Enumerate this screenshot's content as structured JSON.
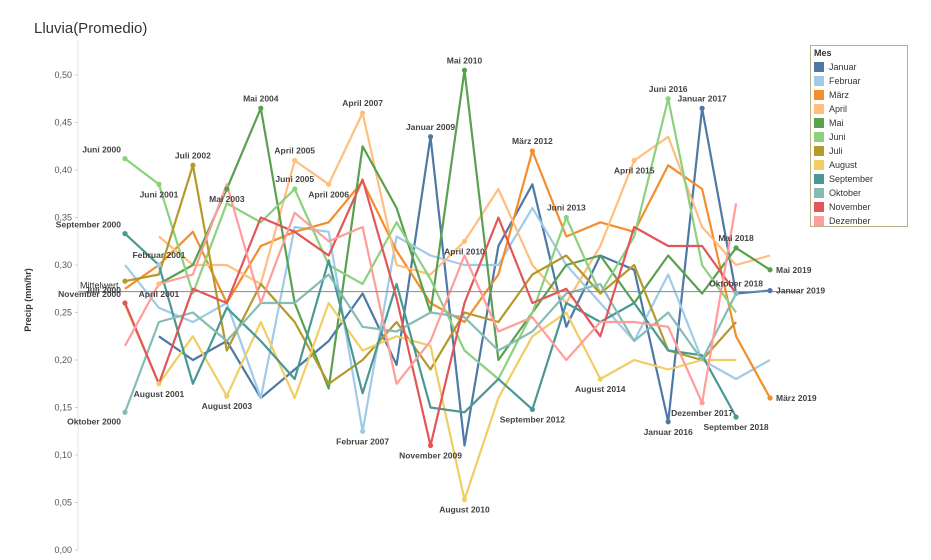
{
  "chart_data": {
    "type": "line",
    "title": "Lluvia(Promedio)",
    "ylabel": "Precip (mm/hr)",
    "ylim": [
      0,
      0.52
    ],
    "yticks": [
      "0,00",
      "0,05",
      "0,10",
      "0,15",
      "0,20",
      "0,25",
      "0,30",
      "0,35",
      "0,40",
      "0,45",
      "0,50"
    ],
    "ytick_values": [
      0,
      0.05,
      0.1,
      0.15,
      0.2,
      0.25,
      0.3,
      0.35,
      0.4,
      0.45,
      0.5
    ],
    "x": [
      2000,
      2001,
      2002,
      2003,
      2004,
      2005,
      2006,
      2007,
      2008,
      2009,
      2010,
      2011,
      2012,
      2013,
      2014,
      2015,
      2016,
      2017,
      2018,
      2019
    ],
    "reference_line": {
      "label": "Mittelwert",
      "value": 0.272
    },
    "legend_title": "Mes",
    "legend_placement": "right",
    "series": [
      {
        "name": "Januar",
        "color": "#4e79a7",
        "values": [
          null,
          0.225,
          0.2,
          0.22,
          0.16,
          0.19,
          0.22,
          0.27,
          0.195,
          0.435,
          0.11,
          0.32,
          0.385,
          0.235,
          0.31,
          0.295,
          0.135,
          0.465,
          0.27,
          0.273
        ]
      },
      {
        "name": "Februar",
        "color": "#a0cbe8",
        "values": [
          0.3,
          0.255,
          0.24,
          0.26,
          0.16,
          0.34,
          0.335,
          0.125,
          0.33,
          0.31,
          0.3,
          0.3,
          0.36,
          0.3,
          0.26,
          0.22,
          0.29,
          0.2,
          0.18,
          0.2
        ]
      },
      {
        "name": "März",
        "color": "#f28e2b",
        "values": [
          0.275,
          0.3,
          0.335,
          0.26,
          0.32,
          0.335,
          0.345,
          0.388,
          0.315,
          0.26,
          0.24,
          0.29,
          0.42,
          0.33,
          0.345,
          0.335,
          0.405,
          0.38,
          0.225,
          0.16
        ]
      },
      {
        "name": "April",
        "color": "#ffbe7d",
        "values": [
          null,
          0.33,
          0.3,
          0.3,
          0.28,
          0.41,
          0.385,
          0.46,
          0.3,
          0.29,
          0.325,
          0.38,
          0.3,
          0.26,
          0.32,
          0.41,
          0.435,
          0.34,
          0.3,
          0.31
        ]
      },
      {
        "name": "Mai",
        "color": "#59a14f",
        "values": [
          null,
          0.28,
          0.3,
          0.38,
          0.465,
          0.26,
          0.17,
          0.425,
          0.36,
          0.25,
          0.505,
          0.2,
          0.25,
          0.3,
          0.31,
          0.26,
          0.31,
          0.27,
          0.318,
          0.295
        ]
      },
      {
        "name": "Juni",
        "color": "#8cd17d",
        "values": [
          0.412,
          0.385,
          0.27,
          0.365,
          0.345,
          0.38,
          0.3,
          0.28,
          0.345,
          0.285,
          0.21,
          0.18,
          0.25,
          0.35,
          0.27,
          0.33,
          0.475,
          0.3,
          0.25,
          null
        ]
      },
      {
        "name": "Juli",
        "color": "#b6992d",
        "values": [
          0.283,
          0.29,
          0.405,
          0.21,
          0.28,
          0.24,
          0.175,
          0.2,
          0.24,
          0.19,
          0.25,
          0.24,
          0.29,
          0.31,
          0.27,
          0.3,
          0.21,
          0.2,
          0.24,
          null
        ]
      },
      {
        "name": "August",
        "color": "#f1ce63",
        "values": [
          0.258,
          0.175,
          0.225,
          0.162,
          0.24,
          0.16,
          0.26,
          0.21,
          0.225,
          0.215,
          0.053,
          0.16,
          0.225,
          0.25,
          0.18,
          0.2,
          0.19,
          0.2,
          0.2,
          null
        ]
      },
      {
        "name": "September",
        "color": "#499894",
        "values": [
          0.333,
          0.3,
          0.175,
          0.255,
          0.22,
          0.18,
          0.305,
          0.165,
          0.28,
          0.15,
          0.145,
          0.18,
          0.148,
          0.26,
          0.24,
          0.26,
          0.21,
          0.205,
          0.14,
          null
        ]
      },
      {
        "name": "Oktober",
        "color": "#86bcb6",
        "values": [
          0.145,
          0.24,
          0.25,
          0.22,
          0.26,
          0.26,
          0.29,
          0.235,
          0.23,
          0.25,
          0.245,
          0.21,
          0.23,
          0.27,
          0.28,
          0.22,
          0.25,
          0.2,
          0.27,
          null
        ]
      },
      {
        "name": "November",
        "color": "#e15759",
        "values": [
          0.26,
          0.175,
          0.275,
          0.26,
          0.35,
          0.335,
          0.31,
          0.39,
          0.265,
          0.11,
          0.26,
          0.35,
          0.26,
          0.275,
          0.225,
          0.34,
          0.32,
          0.32,
          0.27,
          null
        ]
      },
      {
        "name": "Dezember",
        "color": "#ff9d9a",
        "values": [
          0.215,
          0.28,
          0.29,
          0.385,
          0.26,
          0.355,
          0.325,
          0.34,
          0.175,
          0.22,
          0.31,
          0.23,
          0.245,
          0.2,
          0.24,
          0.24,
          0.235,
          0.155,
          0.365,
          null
        ]
      }
    ],
    "annotations": [
      {
        "text": "Juni 2000",
        "x": 2000,
        "y": 0.412
      },
      {
        "text": "Juni 2001",
        "x": 2001,
        "y": 0.385
      },
      {
        "text": "September 2000",
        "x": 2000,
        "y": 0.333
      },
      {
        "text": "Februar 2001",
        "x": 2001,
        "y": 0.3
      },
      {
        "text": "Juli 2000",
        "x": 2000,
        "y": 0.283
      },
      {
        "text": "April 2001",
        "x": 2001,
        "y": 0.28
      },
      {
        "text": "November 2000",
        "x": 2000,
        "y": 0.26
      },
      {
        "text": "Oktober 2000",
        "x": 2000,
        "y": 0.145
      },
      {
        "text": "August 2001",
        "x": 2001,
        "y": 0.175
      },
      {
        "text": "Juli 2002",
        "x": 2002,
        "y": 0.405
      },
      {
        "text": "Mai 2003",
        "x": 2003,
        "y": 0.38
      },
      {
        "text": "August 2003",
        "x": 2003,
        "y": 0.162
      },
      {
        "text": "Mai 2004",
        "x": 2004,
        "y": 0.465
      },
      {
        "text": "April 2005",
        "x": 2005,
        "y": 0.41
      },
      {
        "text": "Juni 2005",
        "x": 2005,
        "y": 0.38
      },
      {
        "text": "April 2006",
        "x": 2006,
        "y": 0.385
      },
      {
        "text": "April 2007",
        "x": 2007,
        "y": 0.46
      },
      {
        "text": "Februar 2007",
        "x": 2007,
        "y": 0.125
      },
      {
        "text": "Januar 2009",
        "x": 2009,
        "y": 0.435
      },
      {
        "text": "November 2009",
        "x": 2009,
        "y": 0.11
      },
      {
        "text": "Mai 2010",
        "x": 2010,
        "y": 0.505
      },
      {
        "text": "April 2010",
        "x": 2010,
        "y": 0.325
      },
      {
        "text": "August 2010",
        "x": 2010,
        "y": 0.053
      },
      {
        "text": "März 2012",
        "x": 2012,
        "y": 0.42
      },
      {
        "text": "September 2012",
        "x": 2012,
        "y": 0.148
      },
      {
        "text": "Juni 2013",
        "x": 2013,
        "y": 0.35
      },
      {
        "text": "August 2014",
        "x": 2014,
        "y": 0.18
      },
      {
        "text": "April 2015",
        "x": 2015,
        "y": 0.41
      },
      {
        "text": "Juni 2016",
        "x": 2016,
        "y": 0.475
      },
      {
        "text": "Januar 2016",
        "x": 2016,
        "y": 0.135
      },
      {
        "text": "Januar 2017",
        "x": 2017,
        "y": 0.465
      },
      {
        "text": "Dezember 2017",
        "x": 2017,
        "y": 0.155
      },
      {
        "text": "Mai 2018",
        "x": 2018,
        "y": 0.318
      },
      {
        "text": "Oktober 2018",
        "x": 2018,
        "y": 0.27
      },
      {
        "text": "September 2018",
        "x": 2018,
        "y": 0.14
      },
      {
        "text": "Mai 2019",
        "x": 2019,
        "y": 0.295
      },
      {
        "text": "Januar 2019",
        "x": 2019,
        "y": 0.273
      },
      {
        "text": "März 2019",
        "x": 2019,
        "y": 0.16
      }
    ]
  }
}
